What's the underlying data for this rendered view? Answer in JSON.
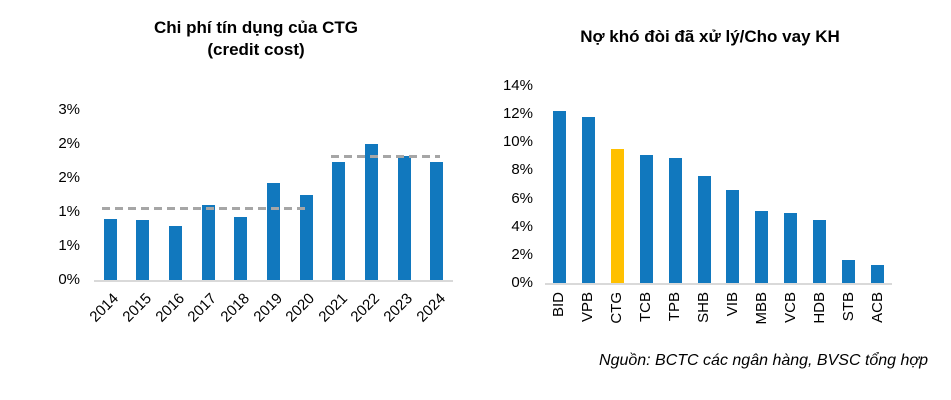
{
  "source_note": "Nguồn: BCTC các ngân hàng, BVSC tổng hợp",
  "chart_data": [
    {
      "type": "bar",
      "title_lines": [
        "Chi phí tín dụng của CTG",
        "(credit cost)"
      ],
      "categories": [
        "2014",
        "2015",
        "2016",
        "2017",
        "2018",
        "2019",
        "2020",
        "2021",
        "2022",
        "2023",
        "2024"
      ],
      "values": [
        0.9,
        0.88,
        0.8,
        1.1,
        0.93,
        1.43,
        1.25,
        1.73,
        2.0,
        1.82,
        1.74
      ],
      "unit": "%",
      "ylim": [
        0,
        2.5
      ],
      "yticks": {
        "values": [
          0,
          0.5,
          1,
          1.5,
          2,
          2.5
        ],
        "labels": [
          "0%",
          "1%",
          "1%",
          "2%",
          "2%",
          "3%"
        ]
      },
      "bar_color": "#1178BE",
      "axis_line_color": "#D9D9D9",
      "grid": false,
      "legend": "none",
      "x_label_rotation": -45,
      "avg_lines": [
        {
          "value": 1.05,
          "from_category": "2014",
          "to_category": "2020",
          "color": "#A6A6A6",
          "style": "dashed"
        },
        {
          "value": 1.82,
          "from_category": "2021",
          "to_category": "2024",
          "color": "#A6A6A6",
          "style": "dashed"
        }
      ]
    },
    {
      "type": "bar",
      "title_lines": [
        "Nợ khó đòi đã xử lý/Cho vay KH"
      ],
      "categories": [
        "BID",
        "VPB",
        "CTG",
        "TCB",
        "TPB",
        "SHB",
        "VIB",
        "MBB",
        "VCB",
        "HDB",
        "STB",
        "ACB"
      ],
      "values": [
        12.2,
        11.8,
        9.5,
        9.1,
        8.9,
        7.6,
        6.6,
        5.1,
        5.0,
        4.5,
        1.65,
        1.25
      ],
      "unit": "%",
      "ylim": [
        0,
        14
      ],
      "yticks": {
        "values": [
          0,
          2,
          4,
          6,
          8,
          10,
          12,
          14
        ],
        "labels": [
          "0%",
          "2%",
          "4%",
          "6%",
          "8%",
          "10%",
          "12%",
          "14%"
        ]
      },
      "bar_color": "#1178BE",
      "highlight": {
        "category": "CTG",
        "color": "#FFC000"
      },
      "axis_line_color": "#D9D9D9",
      "grid": false,
      "legend": "none",
      "x_label_rotation": -90
    }
  ]
}
